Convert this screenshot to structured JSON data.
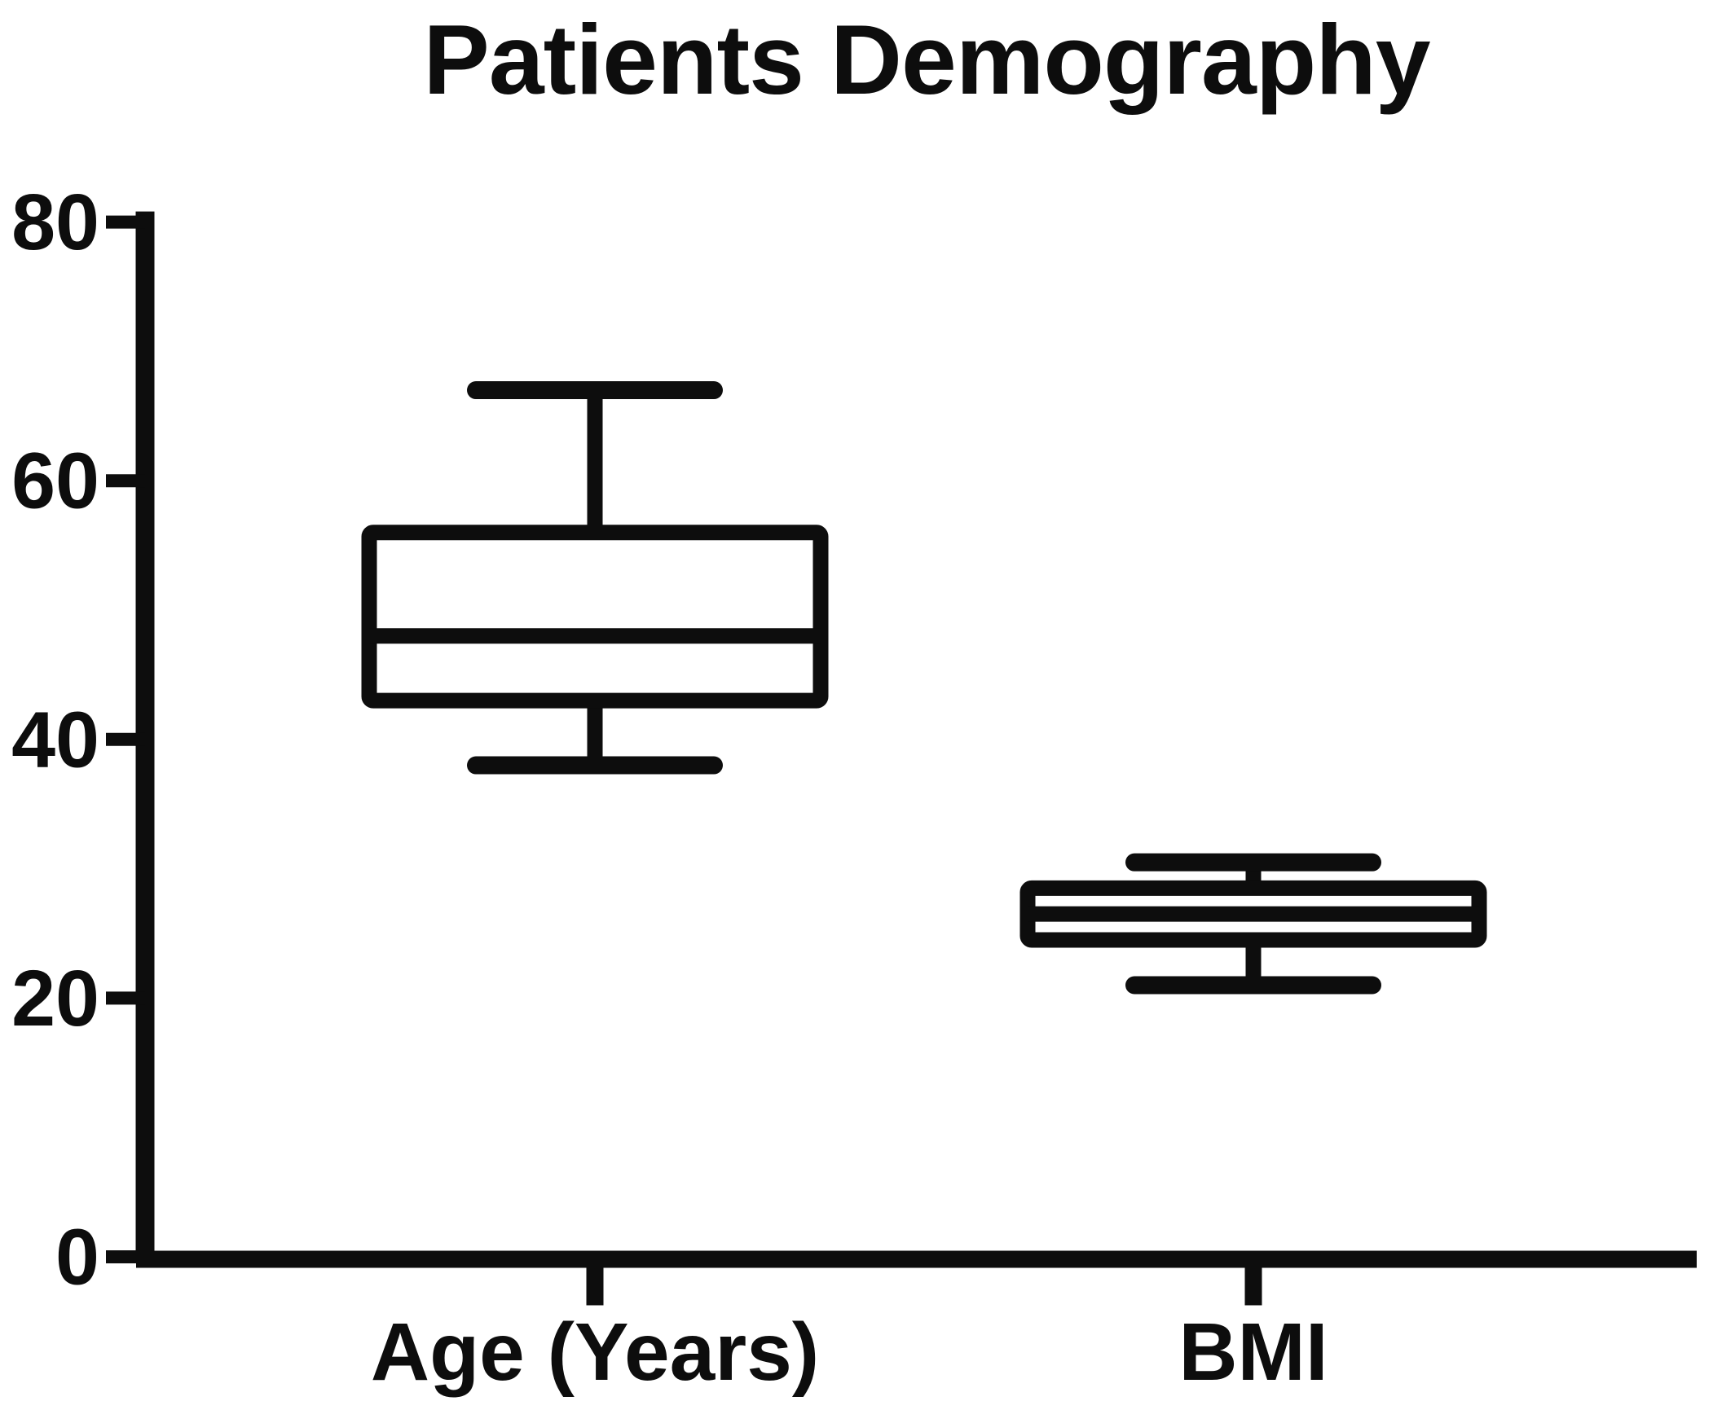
{
  "page": {
    "background": "#ffffff",
    "ink": "#0d0d0d"
  },
  "chart_data": {
    "type": "box",
    "title": "Patients Demography",
    "categories": [
      "Age (Years)",
      "BMI"
    ],
    "series": [
      {
        "name": "Age (Years)",
        "min": 38,
        "q1": 43,
        "median": 48,
        "q3": 56,
        "max": 67
      },
      {
        "name": "BMI",
        "min": 21,
        "q1": 24.5,
        "median": 26.5,
        "q3": 28.5,
        "max": 30.5
      }
    ],
    "ylim": [
      0,
      80
    ],
    "yticks": [
      80,
      60,
      40,
      20,
      0
    ],
    "xlabel": "",
    "ylabel": "",
    "grid": false,
    "legend": false,
    "orientation": "vertical",
    "stroke_color": "#0d0d0d",
    "box_fill": "#ffffff"
  }
}
